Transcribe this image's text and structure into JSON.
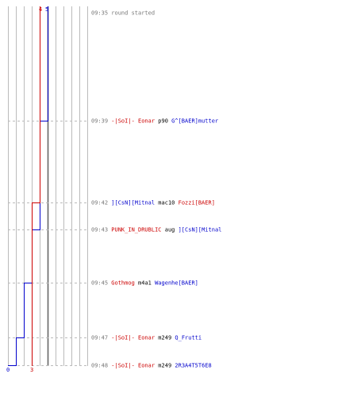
{
  "chart_data": {
    "type": "line",
    "series": [
      {
        "name": "",
        "color": "#0000cc",
        "start_count": 5,
        "end_count": 0,
        "steps": [
          {
            "time": "09:39",
            "value": 4
          },
          {
            "time": "09:43",
            "value": 3
          },
          {
            "time": "09:45",
            "value": 2
          },
          {
            "time": "09:47",
            "value": 1
          },
          {
            "time": "09:48",
            "value": 0
          }
        ]
      },
      {
        "name": "",
        "color": "#cc0000",
        "start_count": 4,
        "end_count": 3,
        "steps": [
          {
            "time": "09:42",
            "value": 3
          }
        ]
      }
    ],
    "x_range": [
      0,
      10
    ],
    "grid": true,
    "events": [
      {
        "time": "09:35",
        "text": "round started"
      },
      {
        "time": "09:39",
        "killer": "-|SoI|- Eonar",
        "killer_team": "red",
        "weapon": "p90",
        "victim": "G^[BAER]mutter",
        "victim_team": "blue"
      },
      {
        "time": "09:42",
        "killer": "][CsN][Mitnal",
        "killer_team": "blue",
        "weapon": "mac10",
        "victim": "Fozzi[BAER]",
        "victim_team": "red"
      },
      {
        "time": "09:43",
        "killer": "PUNK_IN_DRUBLIC",
        "killer_team": "red",
        "weapon": "aug",
        "victim": "][CsN][Mitnal",
        "victim_team": "blue"
      },
      {
        "time": "09:45",
        "killer": "Gothmog",
        "killer_team": "red",
        "weapon": "m4a1",
        "victim": "Wagenhe[BAER]",
        "victim_team": "blue"
      },
      {
        "time": "09:47",
        "killer": "-|SoI|- Eonar",
        "killer_team": "red",
        "weapon": "m249",
        "victim": "Q_Frutti",
        "victim_team": "blue"
      },
      {
        "time": "09:48",
        "killer": "-|SoI|- Eonar",
        "killer_team": "red",
        "weapon": "m249",
        "victim": "2R3A4T5T6E8",
        "victim_team": "blue"
      }
    ]
  },
  "colors": {
    "blue_team": "#0000cc",
    "red_team": "#cc0000",
    "grid": "#bbbbbb",
    "center_line": "#666666",
    "dashed": "#bbbbbb",
    "time_text": "#777777",
    "weapon_text": "#000000"
  }
}
